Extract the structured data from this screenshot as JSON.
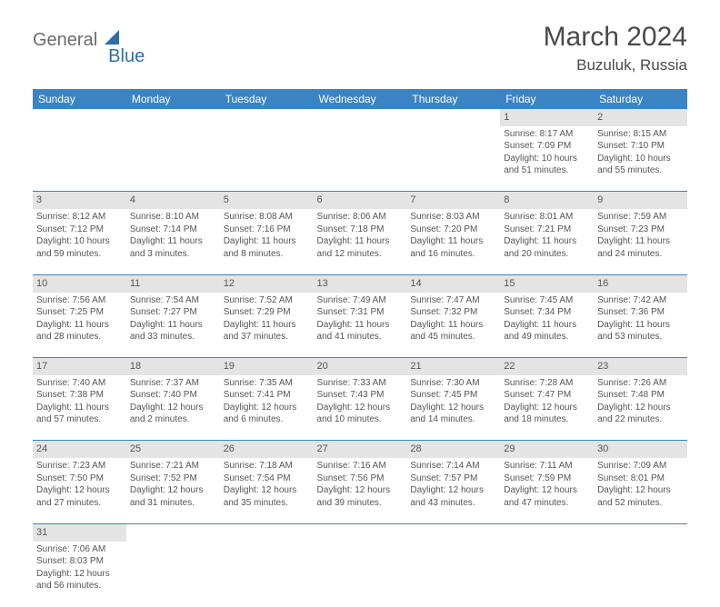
{
  "logo": {
    "part1": "General",
    "part2": "Blue"
  },
  "title": "March 2024",
  "location": "Buzuluk, Russia",
  "header_color": "#3b84c4",
  "daynum_bg": "#e4e4e4",
  "border_color": "#3b84c4",
  "weekdays": [
    "Sunday",
    "Monday",
    "Tuesday",
    "Wednesday",
    "Thursday",
    "Friday",
    "Saturday"
  ],
  "weeks": [
    [
      null,
      null,
      null,
      null,
      null,
      {
        "n": "1",
        "sr": "8:17 AM",
        "ss": "7:09 PM",
        "dl": "10 hours and 51 minutes."
      },
      {
        "n": "2",
        "sr": "8:15 AM",
        "ss": "7:10 PM",
        "dl": "10 hours and 55 minutes."
      }
    ],
    [
      {
        "n": "3",
        "sr": "8:12 AM",
        "ss": "7:12 PM",
        "dl": "10 hours and 59 minutes."
      },
      {
        "n": "4",
        "sr": "8:10 AM",
        "ss": "7:14 PM",
        "dl": "11 hours and 3 minutes."
      },
      {
        "n": "5",
        "sr": "8:08 AM",
        "ss": "7:16 PM",
        "dl": "11 hours and 8 minutes."
      },
      {
        "n": "6",
        "sr": "8:06 AM",
        "ss": "7:18 PM",
        "dl": "11 hours and 12 minutes."
      },
      {
        "n": "7",
        "sr": "8:03 AM",
        "ss": "7:20 PM",
        "dl": "11 hours and 16 minutes."
      },
      {
        "n": "8",
        "sr": "8:01 AM",
        "ss": "7:21 PM",
        "dl": "11 hours and 20 minutes."
      },
      {
        "n": "9",
        "sr": "7:59 AM",
        "ss": "7:23 PM",
        "dl": "11 hours and 24 minutes."
      }
    ],
    [
      {
        "n": "10",
        "sr": "7:56 AM",
        "ss": "7:25 PM",
        "dl": "11 hours and 28 minutes."
      },
      {
        "n": "11",
        "sr": "7:54 AM",
        "ss": "7:27 PM",
        "dl": "11 hours and 33 minutes."
      },
      {
        "n": "12",
        "sr": "7:52 AM",
        "ss": "7:29 PM",
        "dl": "11 hours and 37 minutes."
      },
      {
        "n": "13",
        "sr": "7:49 AM",
        "ss": "7:31 PM",
        "dl": "11 hours and 41 minutes."
      },
      {
        "n": "14",
        "sr": "7:47 AM",
        "ss": "7:32 PM",
        "dl": "11 hours and 45 minutes."
      },
      {
        "n": "15",
        "sr": "7:45 AM",
        "ss": "7:34 PM",
        "dl": "11 hours and 49 minutes."
      },
      {
        "n": "16",
        "sr": "7:42 AM",
        "ss": "7:36 PM",
        "dl": "11 hours and 53 minutes."
      }
    ],
    [
      {
        "n": "17",
        "sr": "7:40 AM",
        "ss": "7:38 PM",
        "dl": "11 hours and 57 minutes."
      },
      {
        "n": "18",
        "sr": "7:37 AM",
        "ss": "7:40 PM",
        "dl": "12 hours and 2 minutes."
      },
      {
        "n": "19",
        "sr": "7:35 AM",
        "ss": "7:41 PM",
        "dl": "12 hours and 6 minutes."
      },
      {
        "n": "20",
        "sr": "7:33 AM",
        "ss": "7:43 PM",
        "dl": "12 hours and 10 minutes."
      },
      {
        "n": "21",
        "sr": "7:30 AM",
        "ss": "7:45 PM",
        "dl": "12 hours and 14 minutes."
      },
      {
        "n": "22",
        "sr": "7:28 AM",
        "ss": "7:47 PM",
        "dl": "12 hours and 18 minutes."
      },
      {
        "n": "23",
        "sr": "7:26 AM",
        "ss": "7:48 PM",
        "dl": "12 hours and 22 minutes."
      }
    ],
    [
      {
        "n": "24",
        "sr": "7:23 AM",
        "ss": "7:50 PM",
        "dl": "12 hours and 27 minutes."
      },
      {
        "n": "25",
        "sr": "7:21 AM",
        "ss": "7:52 PM",
        "dl": "12 hours and 31 minutes."
      },
      {
        "n": "26",
        "sr": "7:18 AM",
        "ss": "7:54 PM",
        "dl": "12 hours and 35 minutes."
      },
      {
        "n": "27",
        "sr": "7:16 AM",
        "ss": "7:56 PM",
        "dl": "12 hours and 39 minutes."
      },
      {
        "n": "28",
        "sr": "7:14 AM",
        "ss": "7:57 PM",
        "dl": "12 hours and 43 minutes."
      },
      {
        "n": "29",
        "sr": "7:11 AM",
        "ss": "7:59 PM",
        "dl": "12 hours and 47 minutes."
      },
      {
        "n": "30",
        "sr": "7:09 AM",
        "ss": "8:01 PM",
        "dl": "12 hours and 52 minutes."
      }
    ],
    [
      {
        "n": "31",
        "sr": "7:06 AM",
        "ss": "8:03 PM",
        "dl": "12 hours and 56 minutes."
      },
      null,
      null,
      null,
      null,
      null,
      null
    ]
  ],
  "labels": {
    "sunrise": "Sunrise:",
    "sunset": "Sunset:",
    "daylight": "Daylight:"
  }
}
